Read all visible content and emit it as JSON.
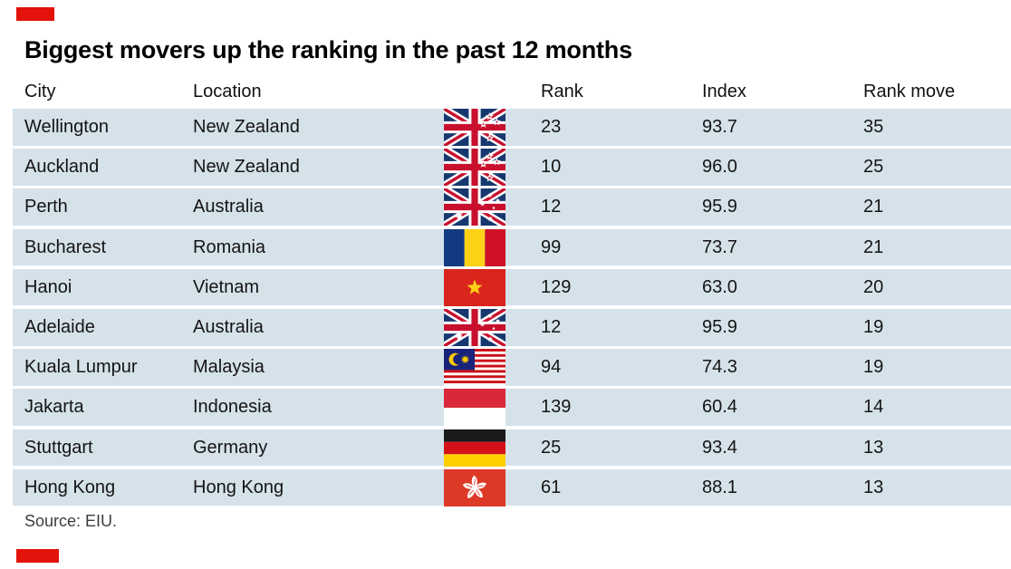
{
  "colors": {
    "accent": "#e3120b",
    "row_bg": "#d5e2ea"
  },
  "header": {
    "title": "Biggest movers up the ranking in the past 12 months"
  },
  "table": {
    "headers": {
      "city": "City",
      "location": "Location",
      "rank": "Rank",
      "index": "Index",
      "rank_move": "Rank move"
    },
    "rows": [
      {
        "city": "Wellington",
        "location": "New Zealand",
        "flag": "nz",
        "flag_icon": "new-zealand-flag-icon",
        "rank": "23",
        "index": "93.7",
        "rank_move": "35"
      },
      {
        "city": "Auckland",
        "location": "New Zealand",
        "flag": "nz",
        "flag_icon": "new-zealand-flag-icon",
        "rank": "10",
        "index": "96.0",
        "rank_move": "25"
      },
      {
        "city": "Perth",
        "location": "Australia",
        "flag": "au",
        "flag_icon": "australia-flag-icon",
        "rank": "12",
        "index": "95.9",
        "rank_move": "21"
      },
      {
        "city": "Bucharest",
        "location": "Romania",
        "flag": "ro",
        "flag_icon": "romania-flag-icon",
        "rank": "99",
        "index": "73.7",
        "rank_move": "21"
      },
      {
        "city": "Hanoi",
        "location": "Vietnam",
        "flag": "vn",
        "flag_icon": "vietnam-flag-icon",
        "rank": "129",
        "index": "63.0",
        "rank_move": "20"
      },
      {
        "city": "Adelaide",
        "location": "Australia",
        "flag": "au",
        "flag_icon": "australia-flag-icon",
        "rank": "12",
        "index": "95.9",
        "rank_move": "19"
      },
      {
        "city": "Kuala Lumpur",
        "location": "Malaysia",
        "flag": "my",
        "flag_icon": "malaysia-flag-icon",
        "rank": "94",
        "index": "74.3",
        "rank_move": "19"
      },
      {
        "city": "Jakarta",
        "location": "Indonesia",
        "flag": "id",
        "flag_icon": "indonesia-flag-icon",
        "rank": "139",
        "index": "60.4",
        "rank_move": "14"
      },
      {
        "city": "Stuttgart",
        "location": "Germany",
        "flag": "de",
        "flag_icon": "germany-flag-icon",
        "rank": "25",
        "index": "93.4",
        "rank_move": "13"
      },
      {
        "city": "Hong Kong",
        "location": "Hong Kong",
        "flag": "hk",
        "flag_icon": "hong-kong-flag-icon",
        "rank": "61",
        "index": "88.1",
        "rank_move": "13"
      }
    ]
  },
  "footer": {
    "source": "Source: EIU."
  },
  "chart_data": {
    "type": "table",
    "title": "Biggest movers up the ranking in the past 12 months",
    "columns": [
      "City",
      "Location",
      "Rank",
      "Index",
      "Rank move"
    ],
    "rows": [
      [
        "Wellington",
        "New Zealand",
        23,
        93.7,
        35
      ],
      [
        "Auckland",
        "New Zealand",
        10,
        96.0,
        25
      ],
      [
        "Perth",
        "Australia",
        12,
        95.9,
        21
      ],
      [
        "Bucharest",
        "Romania",
        99,
        73.7,
        21
      ],
      [
        "Hanoi",
        "Vietnam",
        129,
        63.0,
        20
      ],
      [
        "Adelaide",
        "Australia",
        12,
        95.9,
        19
      ],
      [
        "Kuala Lumpur",
        "Malaysia",
        94,
        74.3,
        19
      ],
      [
        "Jakarta",
        "Indonesia",
        139,
        60.4,
        14
      ],
      [
        "Stuttgart",
        "Germany",
        25,
        93.4,
        13
      ],
      [
        "Hong Kong",
        "Hong Kong",
        61,
        88.1,
        13
      ]
    ],
    "source": "EIU"
  }
}
